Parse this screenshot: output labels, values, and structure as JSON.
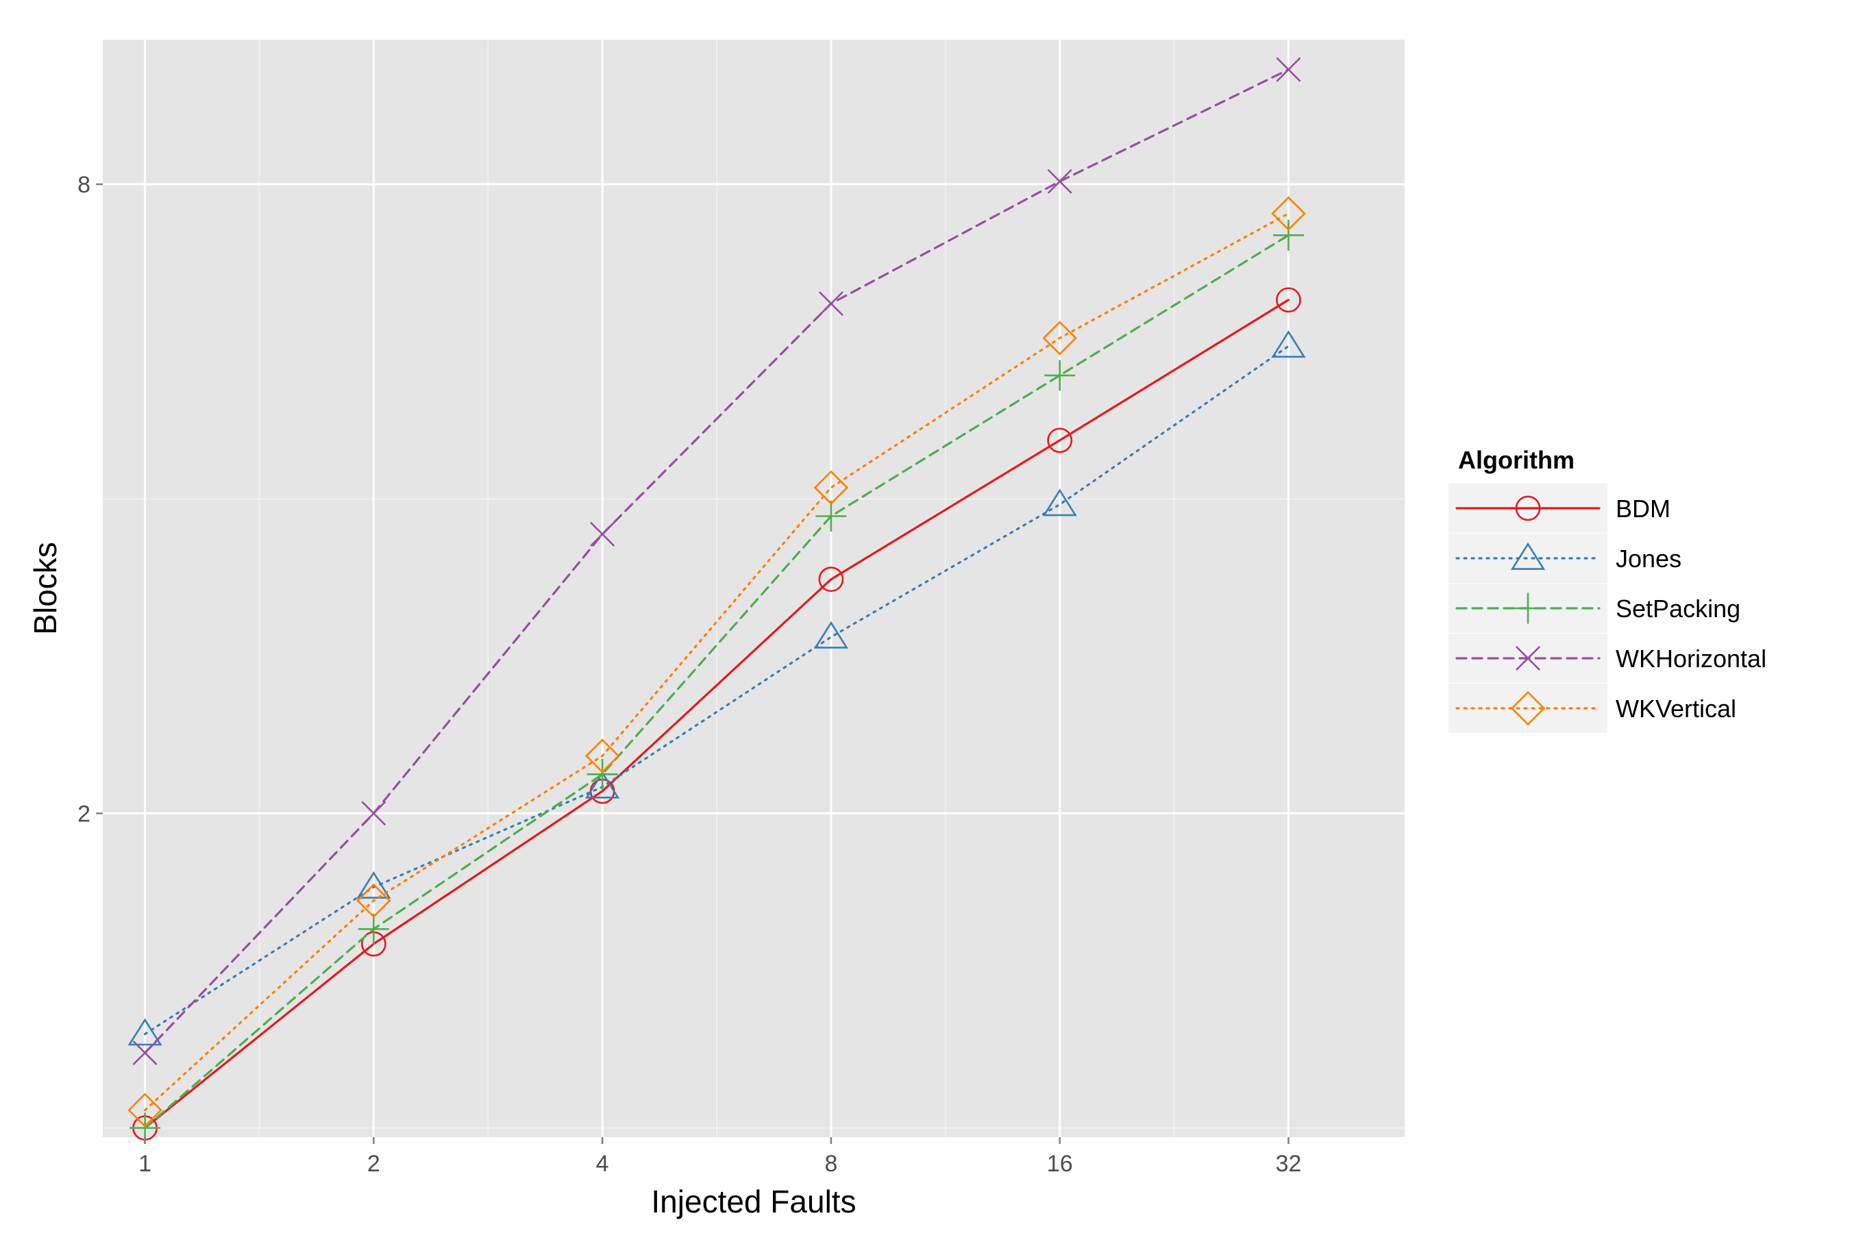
{
  "chart_data": {
    "type": "line",
    "xlabel": "Injected Faults",
    "ylabel": "Blocks",
    "x_scale": "log2",
    "y_scale": "log",
    "x": [
      1,
      2,
      4,
      8,
      16,
      32
    ],
    "x_tick_labels": [
      "1",
      "2",
      "4",
      "8",
      "16",
      "32"
    ],
    "xlim": [
      0.88,
      45.5
    ],
    "y_ticks": [
      2,
      8
    ],
    "y_tick_labels": [
      "2",
      "8"
    ],
    "ylim": [
      0.98,
      11.0
    ],
    "grid": true,
    "legend": {
      "title": "Algorithm",
      "position": "right"
    },
    "series": [
      {
        "name": "BDM",
        "color": "#e41a1c",
        "linestyle": "solid",
        "marker": "circle",
        "values": [
          1.0,
          1.5,
          2.1,
          3.35,
          4.55,
          6.2
        ]
      },
      {
        "name": "Jones",
        "color": "#377eb8",
        "linestyle": "dotted",
        "marker": "triangle",
        "values": [
          1.23,
          1.7,
          2.12,
          2.95,
          3.95,
          5.6
        ]
      },
      {
        "name": "SetPacking",
        "color": "#4daf4a",
        "linestyle": "dashed",
        "marker": "plus",
        "values": [
          1.0,
          1.55,
          2.18,
          3.85,
          5.25,
          7.15
        ]
      },
      {
        "name": "WKHorizontal",
        "color": "#984ea3",
        "linestyle": "dashed",
        "marker": "cross",
        "values": [
          1.18,
          2.0,
          3.7,
          6.15,
          8.05,
          10.3
        ]
      },
      {
        "name": "WKVertical",
        "color": "#ff7f00",
        "linestyle": "dotted",
        "marker": "diamond",
        "values": [
          1.04,
          1.65,
          2.27,
          4.1,
          5.7,
          7.5
        ]
      }
    ]
  }
}
